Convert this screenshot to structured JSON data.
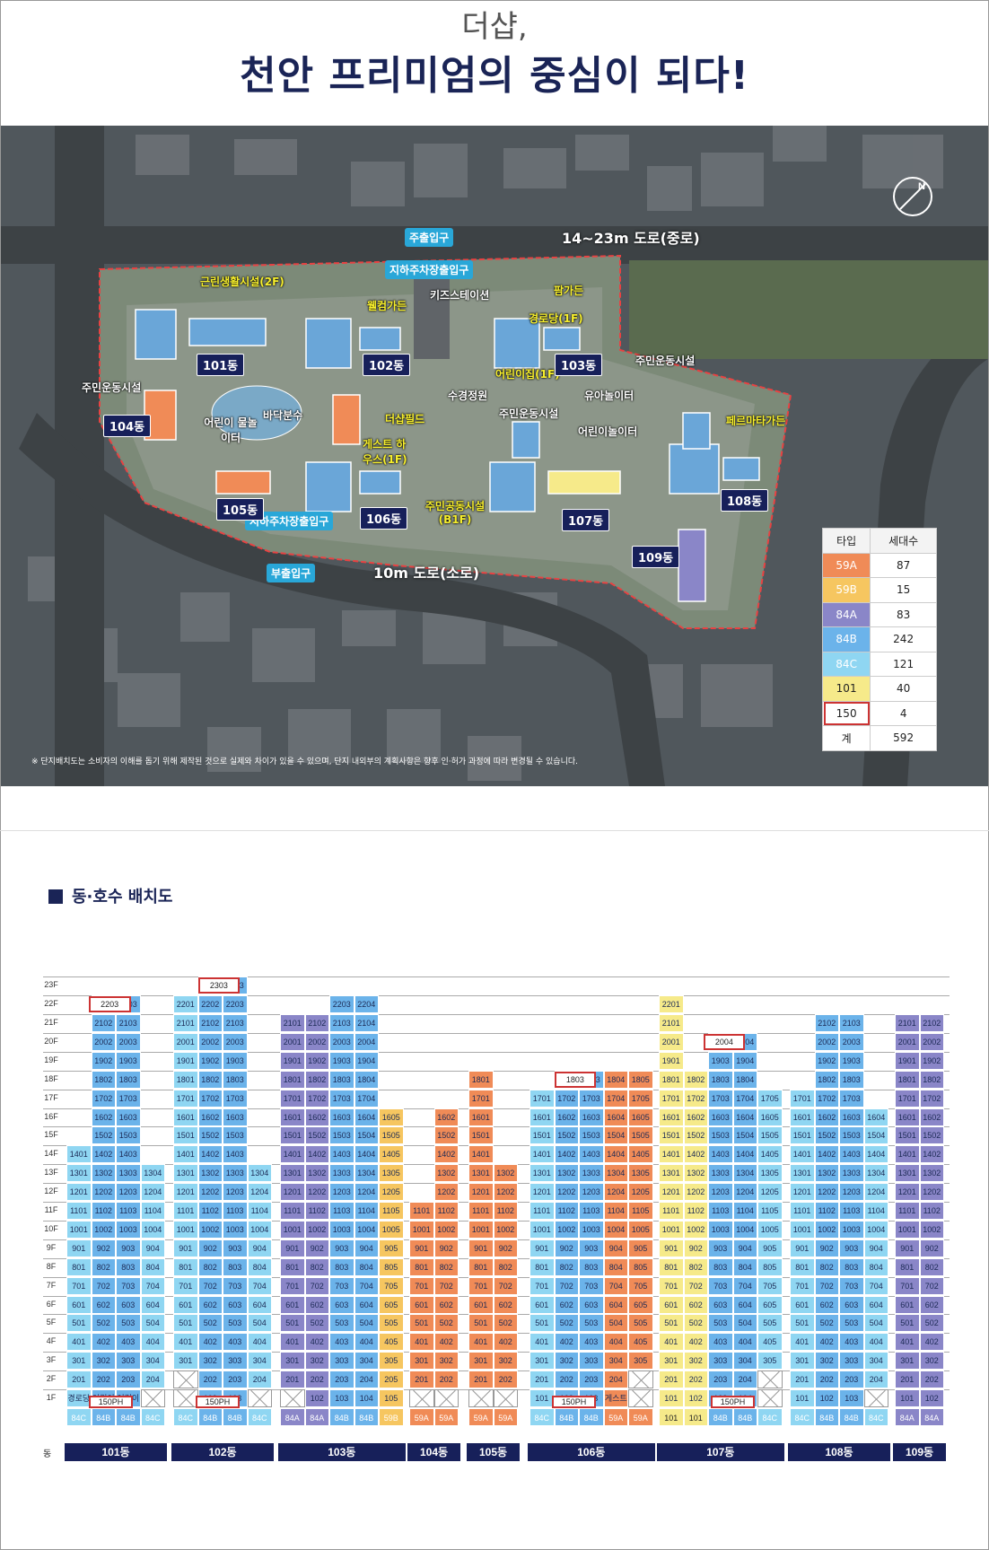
{
  "header": {
    "subtitle": "더샵,",
    "title": "천안 프리미엄의 중심이 되다!"
  },
  "map": {
    "road_top": "14~23m 도로(중로)",
    "road_bottom": "10m 도로(소로)",
    "entrances": {
      "main": "주출입구",
      "parking_top": "지하주차장출입구",
      "sub": "부출입구",
      "parking_bottom": "지하주차장출입구"
    },
    "facilities": [
      "근린생활시설(2F)",
      "웰컴가든",
      "키즈스테이션",
      "팜가든",
      "경로당(1F)",
      "어린이집(1F)",
      "주민운동시설",
      "주민운동시설",
      "어린이 물놀이터",
      "바닥분수",
      "수경정원",
      "유아놀이터",
      "어린이놀이터",
      "주민운동시설",
      "더샵필드",
      "게스트 하우스(1F)",
      "주민공동시설 (B1F)",
      "페르마타가든"
    ],
    "buildings": [
      "101동",
      "102동",
      "103동",
      "104동",
      "105동",
      "106동",
      "107동",
      "108동",
      "109동"
    ],
    "note": "※ 단지배치도는 소비자의 이해를 돕기 위해 제작된 것으로 실제와 차이가 있을 수 있으며, 단지 내외부의 계획사항은 향후 인·허가 과정에 따라 변경될 수 있습니다.",
    "compass_icon": "north-compass-icon"
  },
  "unit_table": {
    "headers": [
      "타입",
      "세대수"
    ],
    "rows": [
      {
        "type": "59A",
        "count": "87",
        "color": "#f08b57"
      },
      {
        "type": "59B",
        "count": "15",
        "color": "#f6c660"
      },
      {
        "type": "84A",
        "count": "83",
        "color": "#8a86c8"
      },
      {
        "type": "84B",
        "count": "242",
        "color": "#6bb3ea"
      },
      {
        "type": "84C",
        "count": "121",
        "color": "#8fd6f2"
      },
      {
        "type": "101",
        "count": "40",
        "color": "#f6ea8a"
      },
      {
        "type": "150",
        "count": "4",
        "color": "#ffffff"
      },
      {
        "type": "계",
        "count": "592",
        "color": "#ffffff"
      }
    ]
  },
  "section": {
    "title": "동·호수 배치도"
  },
  "floor_labels": [
    "23F",
    "22F",
    "21F",
    "20F",
    "19F",
    "18F",
    "17F",
    "16F",
    "15F",
    "14F",
    "13F",
    "12F",
    "11F",
    "10F",
    "9F",
    "8F",
    "7F",
    "6F",
    "5F",
    "4F",
    "3F",
    "2F",
    "1F"
  ],
  "dong_row_label": "동",
  "dongs": [
    "101동",
    "102동",
    "103동",
    "104동",
    "105동",
    "106동",
    "107동",
    "108동",
    "109동"
  ],
  "type_labels": {
    "84C": "84C",
    "84B": "84B",
    "84A": "84A",
    "59A": "59A",
    "59B": "59B",
    "101": "101",
    "150PH": "150PH"
  },
  "special_units": {
    "101_1f": [
      "경로당",
      "어린이집",
      "어린이집"
    ],
    "106_1f_note": "게스트하우스"
  }
}
